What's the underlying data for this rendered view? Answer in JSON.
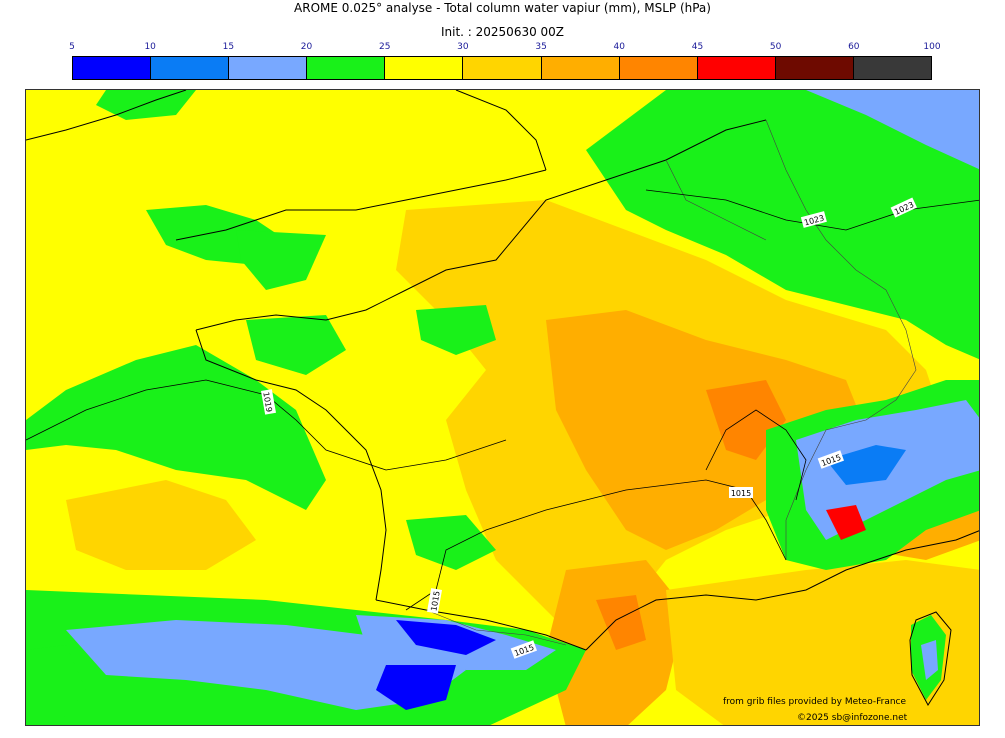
{
  "header": {
    "title": "AROME 0.025° analyse - Total column water vapiur (mm), MSLP (hPa)",
    "init": "Init. : 20250630 00Z"
  },
  "colorbar": {
    "ticks": [
      "5",
      "10",
      "15",
      "20",
      "25",
      "30",
      "35",
      "40",
      "45",
      "50",
      "60",
      "100"
    ],
    "colors": [
      "#0000ff",
      "#0a7cf5",
      "#78a8ff",
      "#19f119",
      "#ffff00",
      "#ffd500",
      "#ffae00",
      "#ff8500",
      "#ff0000",
      "#6e0a00",
      "#393939"
    ]
  },
  "map": {
    "isobar_labels": [
      "1019",
      "1023",
      "1023",
      "1015",
      "1015",
      "1015",
      "1015"
    ],
    "field_colors": {
      "low": "#0000ff",
      "mid_low": "#78a8ff",
      "green": "#19f119",
      "yellow": "#ffff00",
      "gold": "#ffd500",
      "orange": "#ffae00",
      "dark_orange": "#ff8500",
      "red": "#ff0000"
    }
  },
  "footer": {
    "source": "from grib files provided by Meteo-France",
    "copyright": "©2025 sb@infozone.net"
  }
}
